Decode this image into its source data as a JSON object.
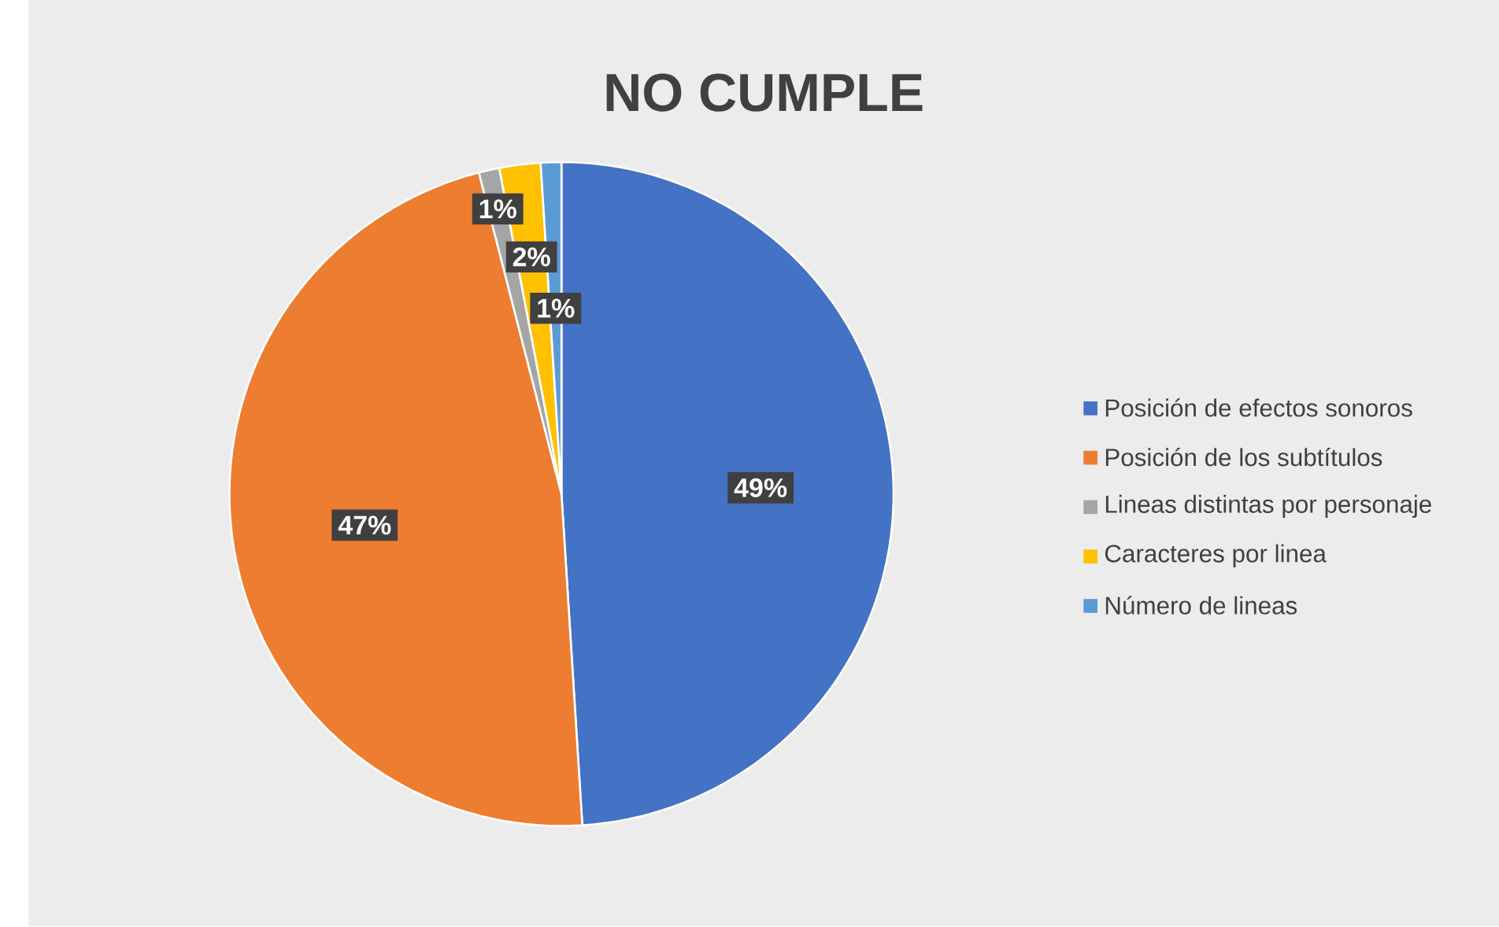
{
  "chart_data": {
    "type": "pie",
    "title": "NO CUMPLE",
    "categories": [
      "Posición de efectos sonoros",
      "Posición de los subtítulos",
      "Lineas distintas por personaje",
      "Caracteres por linea",
      "Número de lineas"
    ],
    "values": [
      49,
      47,
      1,
      2,
      1
    ],
    "colors": [
      "#4472c4",
      "#ed7d31",
      "#a5a5a5",
      "#ffc000",
      "#5b9bd5"
    ],
    "value_labels": [
      "49%",
      "47%",
      "1%",
      "2%",
      "1%"
    ],
    "legend": "right"
  }
}
